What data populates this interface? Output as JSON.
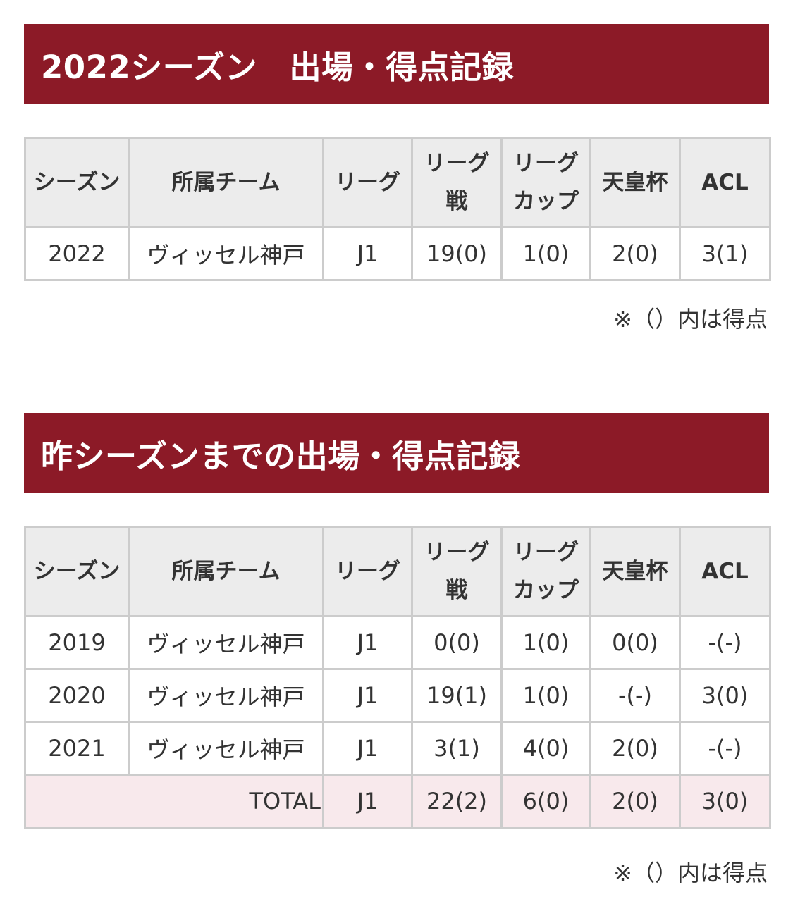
{
  "section_current": {
    "title": "2022シーズン　出場・得点記録",
    "columns": {
      "season": "シーズン",
      "team": "所属チーム",
      "league": "リーグ",
      "league_match_1": "リーグ",
      "league_match_2": "戦",
      "league_cup_1": "リーグ",
      "league_cup_2": "カップ",
      "emperors_cup": "天皇杯",
      "acl": "ACL"
    },
    "rows": [
      {
        "season": "2022",
        "team": "ヴィッセル神戸",
        "league": "J1",
        "league_match": "19(0)",
        "league_cup": "1(0)",
        "emperors_cup": "2(0)",
        "acl": "3(1)"
      }
    ],
    "note": "※（）内は得点"
  },
  "section_previous": {
    "title": "昨シーズンまでの出場・得点記録",
    "columns": {
      "season": "シーズン",
      "team": "所属チーム",
      "league": "リーグ",
      "league_match_1": "リーグ",
      "league_match_2": "戦",
      "league_cup_1": "リーグ",
      "league_cup_2": "カップ",
      "emperors_cup": "天皇杯",
      "acl": "ACL"
    },
    "rows": [
      {
        "season": "2019",
        "team": "ヴィッセル神戸",
        "league": "J1",
        "league_match": "0(0)",
        "league_cup": "1(0)",
        "emperors_cup": "0(0)",
        "acl": "-(-)"
      },
      {
        "season": "2020",
        "team": "ヴィッセル神戸",
        "league": "J1",
        "league_match": "19(1)",
        "league_cup": "1(0)",
        "emperors_cup": "-(-)",
        "acl": "3(0)"
      },
      {
        "season": "2021",
        "team": "ヴィッセル神戸",
        "league": "J1",
        "league_match": "3(1)",
        "league_cup": "4(0)",
        "emperors_cup": "2(0)",
        "acl": "-(-)"
      }
    ],
    "total": {
      "label": "TOTAL",
      "league": "J1",
      "league_match": "22(2)",
      "league_cup": "6(0)",
      "emperors_cup": "2(0)",
      "acl": "3(0)"
    },
    "note": "※（）内は得点"
  },
  "colors": {
    "header_bg": "#8c1a27",
    "header_text": "#ffffff",
    "th_bg": "#ececec",
    "total_bg": "#f8e9ec",
    "border": "#cccccc"
  }
}
